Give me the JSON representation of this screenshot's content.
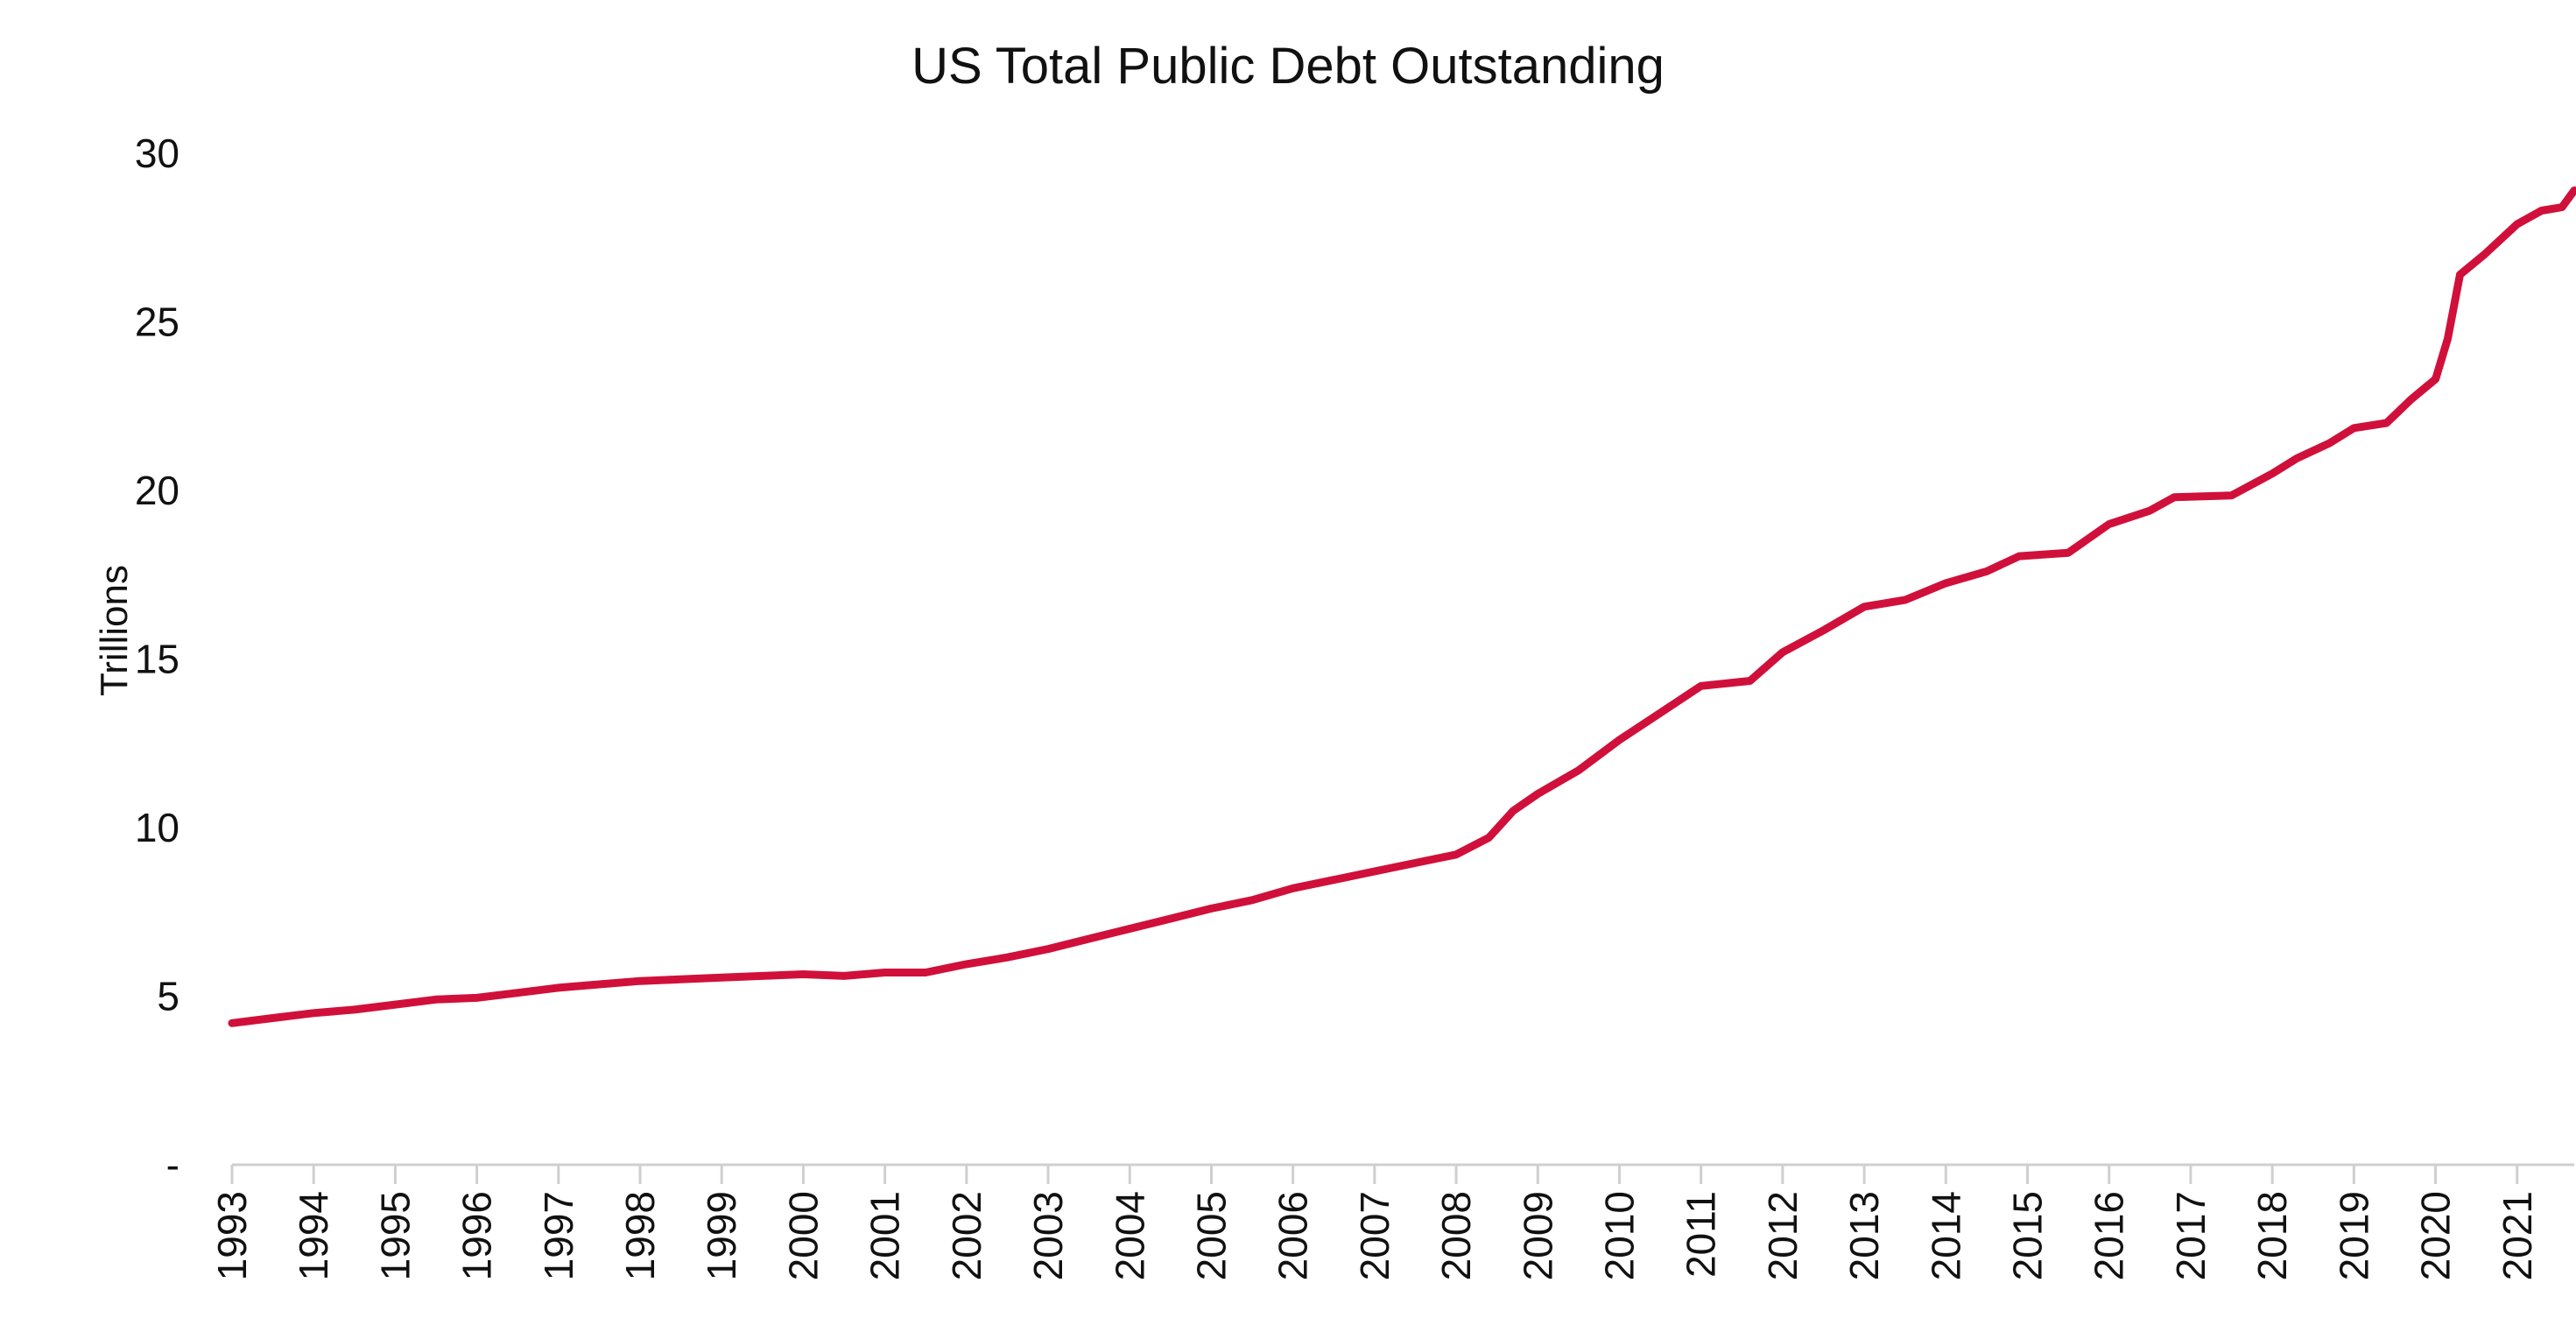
{
  "chart_data": {
    "type": "line",
    "title": "US Total Public Debt Outstanding",
    "ylabel": "Trillions",
    "xlabel": "",
    "xlim": [
      1993,
      2021.7
    ],
    "ylim": [
      0,
      30
    ],
    "grid": false,
    "legend": "none",
    "y_ticks": [
      {
        "value": 0,
        "label": "-"
      },
      {
        "value": 5,
        "label": "5"
      },
      {
        "value": 10,
        "label": "10"
      },
      {
        "value": 15,
        "label": "15"
      },
      {
        "value": 20,
        "label": "20"
      },
      {
        "value": 25,
        "label": "25"
      },
      {
        "value": 30,
        "label": "30"
      }
    ],
    "x_ticks": [
      "1993",
      "1994",
      "1995",
      "1996",
      "1997",
      "1998",
      "1999",
      "2000",
      "2001",
      "2002",
      "2003",
      "2004",
      "2005",
      "2006",
      "2007",
      "2008",
      "2009",
      "2010",
      "2011",
      "2012",
      "2013",
      "2014",
      "2015",
      "2016",
      "2017",
      "2018",
      "2019",
      "2020",
      "2021"
    ],
    "series": [
      {
        "color": "#d0103a",
        "points": [
          [
            1993.0,
            4.2
          ],
          [
            1993.5,
            4.35
          ],
          [
            1994.0,
            4.5
          ],
          [
            1994.5,
            4.6
          ],
          [
            1995.0,
            4.75
          ],
          [
            1995.5,
            4.9
          ],
          [
            1996.0,
            4.95
          ],
          [
            1996.5,
            5.1
          ],
          [
            1997.0,
            5.25
          ],
          [
            1997.5,
            5.35
          ],
          [
            1998.0,
            5.45
          ],
          [
            1998.5,
            5.5
          ],
          [
            1999.0,
            5.55
          ],
          [
            1999.5,
            5.6
          ],
          [
            2000.0,
            5.65
          ],
          [
            2000.5,
            5.6
          ],
          [
            2001.0,
            5.7
          ],
          [
            2001.5,
            5.7
          ],
          [
            2002.0,
            5.95
          ],
          [
            2002.5,
            6.15
          ],
          [
            2003.0,
            6.4
          ],
          [
            2003.5,
            6.7
          ],
          [
            2004.0,
            7.0
          ],
          [
            2004.5,
            7.3
          ],
          [
            2005.0,
            7.6
          ],
          [
            2005.5,
            7.85
          ],
          [
            2006.0,
            8.2
          ],
          [
            2006.5,
            8.45
          ],
          [
            2007.0,
            8.7
          ],
          [
            2007.5,
            8.95
          ],
          [
            2008.0,
            9.2
          ],
          [
            2008.4,
            9.7
          ],
          [
            2008.7,
            10.5
          ],
          [
            2009.0,
            11.0
          ],
          [
            2009.5,
            11.7
          ],
          [
            2010.0,
            12.6
          ],
          [
            2010.5,
            13.4
          ],
          [
            2011.0,
            14.2
          ],
          [
            2011.6,
            14.35
          ],
          [
            2012.0,
            15.2
          ],
          [
            2012.5,
            15.85
          ],
          [
            2013.0,
            16.55
          ],
          [
            2013.5,
            16.75
          ],
          [
            2014.0,
            17.25
          ],
          [
            2014.5,
            17.6
          ],
          [
            2014.9,
            18.05
          ],
          [
            2015.5,
            18.15
          ],
          [
            2016.0,
            19.0
          ],
          [
            2016.5,
            19.4
          ],
          [
            2016.8,
            19.8
          ],
          [
            2017.5,
            19.85
          ],
          [
            2018.0,
            20.5
          ],
          [
            2018.3,
            20.95
          ],
          [
            2018.7,
            21.4
          ],
          [
            2019.0,
            21.85
          ],
          [
            2019.4,
            22.0
          ],
          [
            2019.7,
            22.7
          ],
          [
            2020.0,
            23.3
          ],
          [
            2020.15,
            24.5
          ],
          [
            2020.3,
            26.4
          ],
          [
            2020.6,
            27.0
          ],
          [
            2021.0,
            27.9
          ],
          [
            2021.3,
            28.3
          ],
          [
            2021.55,
            28.4
          ],
          [
            2021.7,
            28.9
          ]
        ]
      }
    ]
  }
}
